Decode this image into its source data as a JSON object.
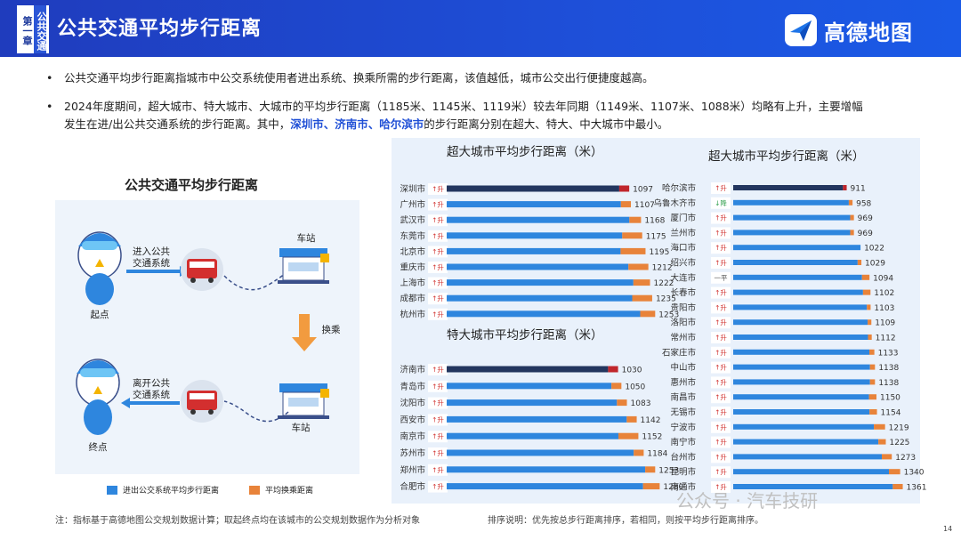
{
  "header": {
    "chapter_tag": [
      "第一章",
      "公共交通"
    ],
    "title": "公共交通平均步行距离",
    "logo_text": "高德地图"
  },
  "bullets": {
    "b1": "公共交通平均步行距离指城市中公交系统使用者进出系统、换乘所需的步行距离，该值越低，城市公交出行便捷度越高。",
    "b2_line1": "2024年度期间，超大城市、特大城市、大城市的平均步行距离（1185米、1145米、1119米）较去年同期（1149米、1107米、1088米）均略有上升，主要增幅",
    "b2_line2_pre": "发生在进/出公共交通系统的步行距离。其中，",
    "b2_line2_hl": "深圳市、济南市、哈尔滨市",
    "b2_line2_post": "的步行距离分别在超大、特大、中大城市中最小。"
  },
  "diagram": {
    "title": "公共交通平均步行距离",
    "enter_label": "进入公共\n交通系统",
    "exit_label": "离开公共\n交通系统",
    "station_top": "车站",
    "station_bottom": "车站",
    "transfer": "换乘",
    "start": "起点",
    "end": "终点"
  },
  "legend": {
    "item1": "进出公交系统平均步行距离",
    "item2": "平均换乘距离",
    "color1": "#2e86de",
    "color2": "#e8833a"
  },
  "notes": {
    "left": "注：指标基于高德地图公交规划数据计算；取起终点均在该城市的公交规划数据作为分析对象",
    "right": "排序说明：优先按总步行距离排序，若相同，则按平均步行距离排序。",
    "page": "14"
  },
  "watermark": "公众号 · 汽车技研",
  "colors": {
    "accent": "#1e4fd8",
    "walk": "#2e86de",
    "transfer": "#e8833a",
    "highlight_bar": "#23365f",
    "highlight_transfer": "#c0262c",
    "up": "#d0312d",
    "down": "#2e9e4a"
  },
  "chart_data": [
    {
      "type": "bar",
      "title": "超大城市平均步行距离（米）",
      "categories": [
        "深圳市",
        "广州市",
        "武汉市",
        "东莞市",
        "北京市",
        "重庆市",
        "上海市",
        "成都市",
        "杭州市"
      ],
      "trend": [
        "↑升",
        "↑升",
        "↑升",
        "↑升",
        "↑升",
        "↑升",
        "↑升",
        "↑升",
        "↑升"
      ],
      "values": [
        1097,
        1107,
        1168,
        1175,
        1195,
        1212,
        1222,
        1235,
        1253
      ],
      "transfer_values": [
        60,
        60,
        70,
        120,
        150,
        120,
        100,
        120,
        90
      ]
    },
    {
      "type": "bar",
      "title": "特大城市平均步行距离（米）",
      "categories": [
        "济南市",
        "青岛市",
        "沈阳市",
        "西安市",
        "南京市",
        "苏州市",
        "郑州市",
        "合肥市"
      ],
      "trend": [
        "↑升",
        "↑升",
        "↑升",
        "↑升",
        "↑升",
        "↑升",
        "↑升",
        "↑升"
      ],
      "values": [
        1030,
        1050,
        1083,
        1142,
        1152,
        1184,
        1253,
        1280
      ],
      "transfer_values": [
        60,
        60,
        60,
        60,
        120,
        60,
        60,
        100
      ]
    },
    {
      "type": "bar",
      "title": "超大城市平均步行距离（米）",
      "categories": [
        "哈尔滨市",
        "乌鲁木齐市",
        "厦门市",
        "兰州市",
        "海口市",
        "绍兴市",
        "大连市",
        "长春市",
        "贵阳市",
        "洛阳市",
        "常州市",
        "石家庄市",
        "中山市",
        "惠州市",
        "南昌市",
        "无锡市",
        "宁波市",
        "南宁市",
        "台州市",
        "昆明市",
        "南通市"
      ],
      "trend": [
        "↑升",
        "↓降",
        "↑升",
        "↑升",
        "↑升",
        "↑升",
        "一平",
        "↑升",
        "↑升",
        "↑升",
        "↑升",
        "↑升",
        "↑升",
        "↑升",
        "↑升",
        "↑升",
        "↑升",
        "↑升",
        "↑升",
        "↑升",
        "↑升"
      ],
      "values": [
        911,
        958,
        969,
        969,
        1022,
        1029,
        1094,
        1102,
        1103,
        1109,
        1112,
        1133,
        1138,
        1138,
        1150,
        1154,
        1219,
        1225,
        1273,
        1340,
        1361
      ],
      "transfer_values": [
        30,
        30,
        30,
        30,
        0,
        30,
        60,
        60,
        30,
        30,
        30,
        40,
        40,
        40,
        60,
        60,
        90,
        60,
        80,
        90,
        80
      ]
    }
  ]
}
